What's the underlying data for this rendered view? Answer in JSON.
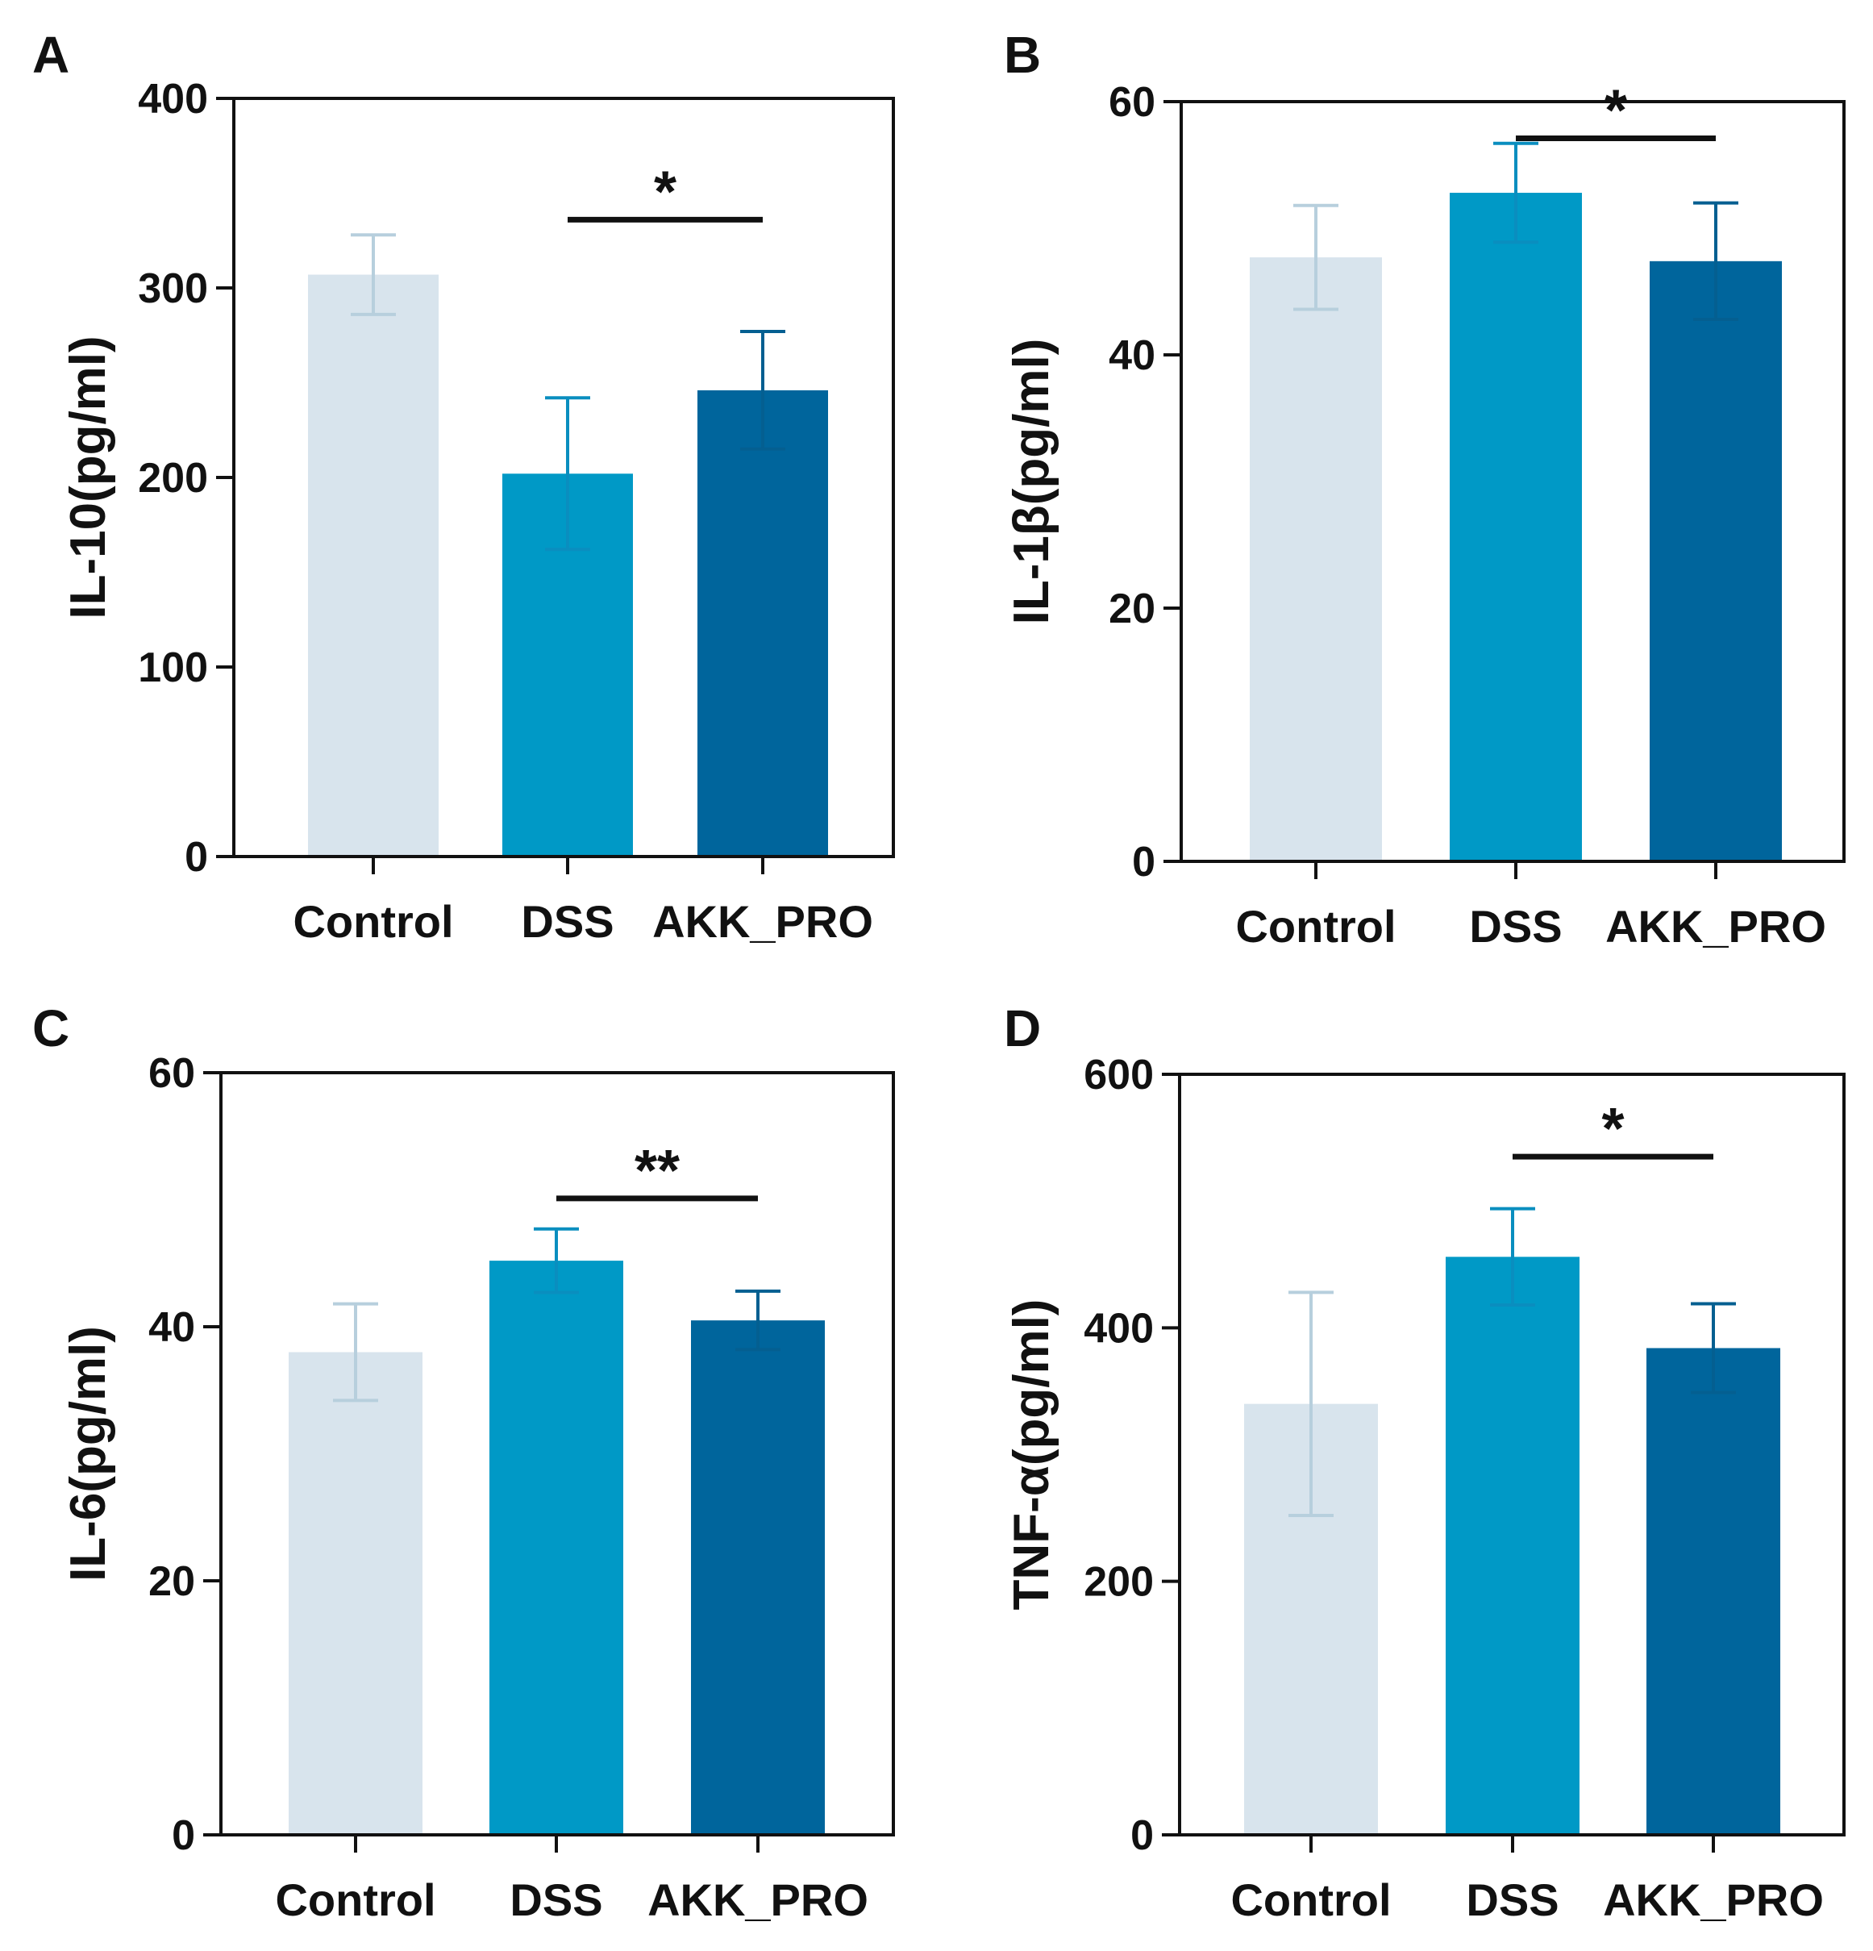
{
  "colors": {
    "Control": "#d8e4ed",
    "DSS": "#0099c6",
    "AKK_PRO": "#00659c",
    "control_error": "#b7cfdd",
    "dss_error": "#0a8ebf",
    "akk_error": "#045f91",
    "axis": "#111111"
  },
  "chart_data": [
    {
      "type": "bar",
      "panel": "A",
      "categories": [
        "Control",
        "DSS",
        "AKK_PRO"
      ],
      "values": [
        307,
        202,
        246
      ],
      "errors": [
        21,
        40,
        31
      ],
      "ylabel": "IL-10(pg/ml)",
      "ylim": [
        0,
        400
      ],
      "yticks": [
        0,
        100,
        200,
        300,
        400
      ],
      "significance": {
        "from": "DSS",
        "to": "AKK_PRO",
        "label": "*",
        "y": 336
      }
    },
    {
      "type": "bar",
      "panel": "B",
      "categories": [
        "Control",
        "DSS",
        "AKK_PRO"
      ],
      "values": [
        47.7,
        52.8,
        47.4
      ],
      "errors": [
        4.1,
        3.9,
        4.6
      ],
      "ylabel": "IL-1β(pg/ml)",
      "ylim": [
        0,
        60
      ],
      "yticks": [
        0,
        20,
        40,
        60
      ],
      "significance": {
        "from": "DSS",
        "to": "AKK_PRO",
        "label": "*",
        "y": 57.1
      }
    },
    {
      "type": "bar",
      "panel": "C",
      "categories": [
        "Control",
        "DSS",
        "AKK_PRO"
      ],
      "values": [
        38.0,
        45.2,
        40.5
      ],
      "errors": [
        3.8,
        2.5,
        2.3
      ],
      "ylabel": "IL-6(pg/ml)",
      "ylim": [
        0,
        60
      ],
      "yticks": [
        0,
        20,
        40,
        60
      ],
      "significance": {
        "from": "DSS",
        "to": "AKK_PRO",
        "label": "**",
        "y": 50.1
      }
    },
    {
      "type": "bar",
      "panel": "D",
      "categories": [
        "Control",
        "DSS",
        "AKK_PRO"
      ],
      "values": [
        340,
        456,
        384
      ],
      "errors": [
        88,
        38,
        35
      ],
      "ylabel": "TNF-α(pg/ml)",
      "ylim": [
        0,
        600
      ],
      "yticks": [
        0,
        200,
        400,
        600
      ],
      "significance": {
        "from": "DSS",
        "to": "AKK_PRO",
        "label": "*",
        "y": 535
      }
    }
  ]
}
